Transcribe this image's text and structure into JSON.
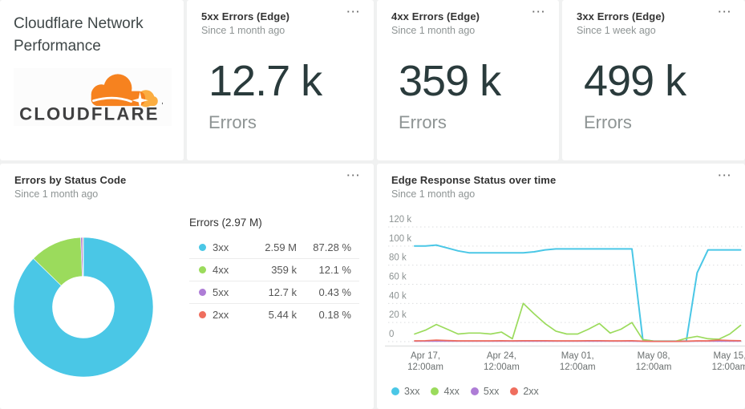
{
  "colors": {
    "status_3xx": "#4AC7E6",
    "status_4xx": "#9BDB5C",
    "status_5xx": "#AE7DD6",
    "status_2xx": "#EF6E5E",
    "cloudflare_orange": "#F6821F",
    "cloudflare_light_orange": "#FBAD41",
    "big_number": "#2A3B3C",
    "muted_text": "#8E9494"
  },
  "info_card": {
    "title": "Cloudflare Network Performance",
    "logo_text": "CLOUDFLARE",
    "logo_trademark": "’"
  },
  "kpi_cards": [
    {
      "title": "5xx Errors (Edge)",
      "subtitle": "Since 1 month ago",
      "value": "12.7 k",
      "unit_label": "Errors",
      "menu_icon": "···"
    },
    {
      "title": "4xx Errors (Edge)",
      "subtitle": "Since 1 month ago",
      "value": "359 k",
      "unit_label": "Errors",
      "menu_icon": "···"
    },
    {
      "title": "3xx Errors (Edge)",
      "subtitle": "Since 1 week ago",
      "value": "499 k",
      "unit_label": "Errors",
      "menu_icon": "···"
    }
  ],
  "pie_card": {
    "title": "Errors by Status Code",
    "subtitle": "Since 1 month ago",
    "menu_icon": "···",
    "legend_title": "Errors (2.97 M)"
  },
  "line_card": {
    "title": "Edge Response Status over time",
    "subtitle": "Since 1 month ago",
    "menu_icon": "···"
  },
  "chart_data": [
    {
      "type": "pie",
      "style": "donut",
      "title": "Errors by Status Code",
      "timeframe": "Since 1 month ago",
      "total_label": "Errors (2.97 M)",
      "legend_position": "right",
      "slices": [
        {
          "name": "3xx",
          "value_label": "2.59 M",
          "value": 2590000,
          "percent": 87.28,
          "percent_label": "87.28 %",
          "color": "#4AC7E6"
        },
        {
          "name": "4xx",
          "value_label": "359 k",
          "value": 359000,
          "percent": 12.1,
          "percent_label": "12.1 %",
          "color": "#9BDB5C"
        },
        {
          "name": "5xx",
          "value_label": "12.7 k",
          "value": 12700,
          "percent": 0.43,
          "percent_label": "0.43 %",
          "color": "#AE7DD6"
        },
        {
          "name": "2xx",
          "value_label": "5.44 k",
          "value": 5440,
          "percent": 0.18,
          "percent_label": "0.18 %",
          "color": "#EF6E5E"
        }
      ]
    },
    {
      "type": "line",
      "title": "Edge Response Status over time",
      "timeframe": "Since 1 month ago",
      "grid": "dotted-horizontal",
      "ylim_k": [
        0,
        120
      ],
      "yticks": [
        {
          "v": 120,
          "label": "120 k"
        },
        {
          "v": 100,
          "label": "100 k"
        },
        {
          "v": 80,
          "label": "80 k"
        },
        {
          "v": 60,
          "label": "60 k"
        },
        {
          "v": 40,
          "label": "40 k"
        },
        {
          "v": 20,
          "label": "20 k"
        },
        {
          "v": 0,
          "label": "0"
        }
      ],
      "x_tick_labels": [
        {
          "line1": "Apr 17,",
          "line2": "12:00am",
          "index": 1
        },
        {
          "line1": "Apr 24,",
          "line2": "12:00am",
          "index": 8
        },
        {
          "line1": "May 01,",
          "line2": "12:00am",
          "index": 15
        },
        {
          "line1": "May 08,",
          "line2": "12:00am",
          "index": 22
        },
        {
          "line1": "May 15,",
          "line2": "12:00am",
          "index": 29
        }
      ],
      "series": [
        {
          "name": "3xx",
          "color": "#4AC7E6",
          "stroke": 2,
          "values_k": [
            100,
            100,
            101,
            98,
            95,
            93,
            93,
            93,
            93,
            93,
            93,
            94,
            96,
            97,
            97,
            97,
            97,
            97,
            97,
            97,
            97,
            2,
            0.5,
            0.5,
            0.5,
            0.5,
            72,
            96,
            96,
            96,
            96
          ]
        },
        {
          "name": "4xx",
          "color": "#9BDB5C",
          "stroke": 1.7,
          "values_k": [
            8,
            12,
            18,
            13,
            8,
            9,
            9,
            8,
            10,
            3,
            40,
            29,
            19,
            11,
            8,
            8,
            13,
            19,
            9,
            13,
            20,
            2,
            0.5,
            0.3,
            0.3,
            3.5,
            5.5,
            3,
            2.5,
            8,
            17
          ]
        },
        {
          "name": "5xx",
          "color": "#AE7DD6",
          "stroke": 1.5,
          "values_k": [
            0.4,
            0.4,
            0.4,
            0.4,
            0.4,
            0.4,
            0.4,
            0.4,
            0.4,
            0.4,
            0.4,
            0.4,
            0.4,
            0.4,
            0.4,
            0.4,
            0.4,
            0.4,
            0.4,
            0.4,
            0.4,
            0.2,
            0.1,
            0.1,
            0.1,
            0.2,
            0.4,
            0.4,
            0.4,
            0.4,
            0.4
          ]
        },
        {
          "name": "2xx",
          "color": "#EF6E5E",
          "stroke": 1.7,
          "values_k": [
            0.8,
            1,
            1.6,
            1.2,
            0.8,
            0.8,
            0.8,
            0.8,
            1,
            0.8,
            1,
            1,
            1,
            0.8,
            0.8,
            0.8,
            1,
            1,
            0.8,
            0.8,
            1,
            0.5,
            0.3,
            0.3,
            0.3,
            0.5,
            0.8,
            0.8,
            1.6,
            1.2,
            1
          ]
        }
      ],
      "legend": [
        "3xx",
        "4xx",
        "5xx",
        "2xx"
      ]
    }
  ]
}
